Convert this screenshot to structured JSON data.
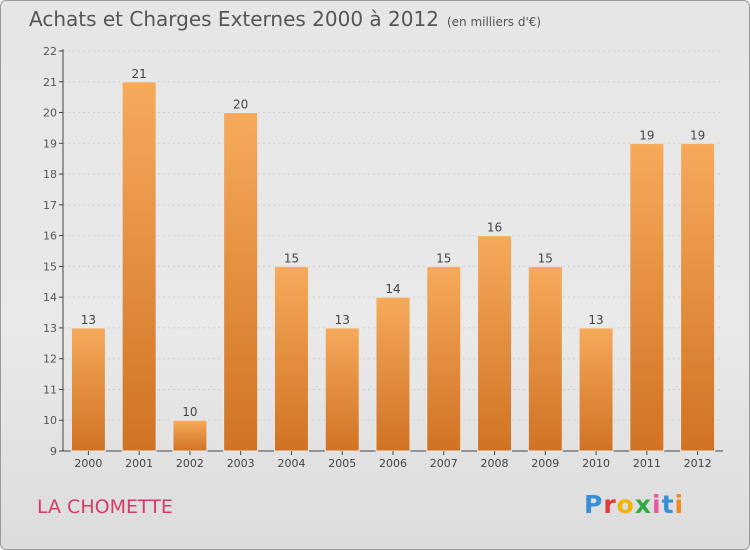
{
  "title": "Achats et Charges Externes 2000 à 2012",
  "subtitle": "(en milliers d'€)",
  "commune": "LA CHOMETTE",
  "logo_letters": [
    "P",
    "r",
    "o",
    "x",
    "i",
    "t",
    "i"
  ],
  "colors": {
    "bar": "#f0963c",
    "bar_light": "#f6aa5a",
    "bar_dark": "#d07224",
    "axis": "#444444",
    "grid": "#cfcfcf",
    "commune": "#d63a6a",
    "logo": [
      "#3a8ed8",
      "#e03a3a",
      "#f0b400",
      "#33aa44",
      "#e85aa0",
      "#3a8ed8",
      "#f08a24"
    ]
  },
  "chart_data": {
    "type": "bar",
    "categories": [
      "2000",
      "2001",
      "2002",
      "2003",
      "2004",
      "2005",
      "2006",
      "2007",
      "2008",
      "2009",
      "2010",
      "2011",
      "2012"
    ],
    "values": [
      13,
      21,
      10,
      20,
      15,
      13,
      14,
      15,
      16,
      15,
      13,
      19,
      19
    ],
    "ylim": [
      9,
      22
    ],
    "yticks": [
      9,
      10,
      11,
      12,
      13,
      14,
      15,
      16,
      17,
      18,
      19,
      20,
      21,
      22
    ],
    "grid": true
  }
}
